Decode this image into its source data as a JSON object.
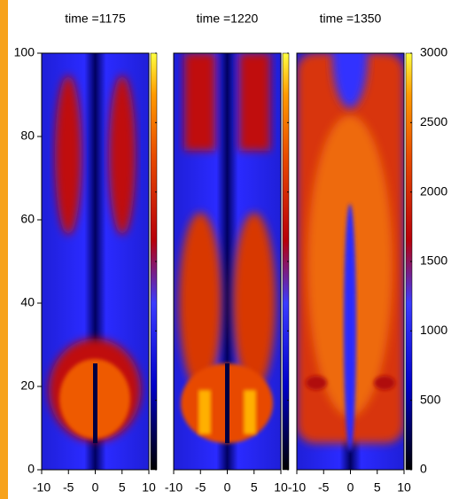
{
  "chart_data": {
    "type": "heatmap",
    "panels": [
      {
        "title": "time =1175"
      },
      {
        "title": "time =1220"
      },
      {
        "title": "time =1350"
      }
    ],
    "xlim": [
      -10,
      10
    ],
    "xticks": [
      -10,
      -5,
      0,
      5,
      10
    ],
    "ylim": [
      0,
      100
    ],
    "yticks": [
      0,
      20,
      40,
      60,
      80,
      100
    ],
    "colorbar": {
      "lim": [
        0,
        3000
      ],
      "ticks": [
        0,
        500,
        1000,
        1500,
        2000,
        2500,
        3000
      ]
    }
  }
}
